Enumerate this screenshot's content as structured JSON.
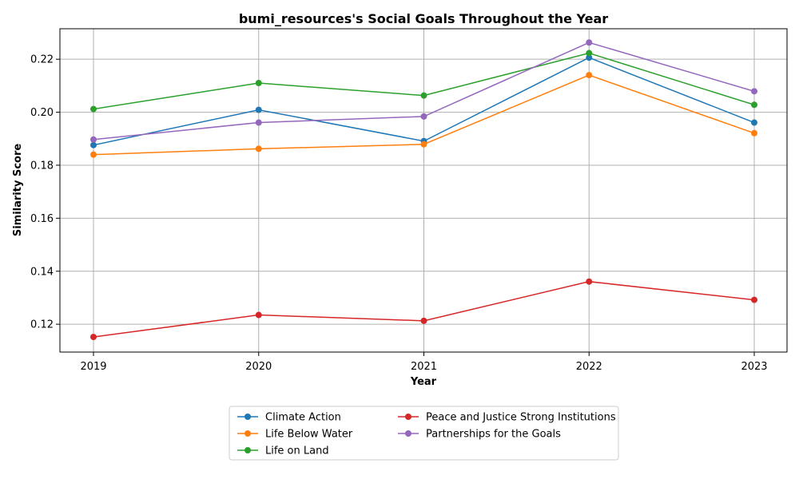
{
  "chart_data": {
    "type": "line",
    "title": "bumi_resources's Social Goals Throughout the Year",
    "xlabel": "Year",
    "ylabel": "Similarity Score",
    "x": [
      "2019",
      "2020",
      "2021",
      "2022",
      "2023"
    ],
    "ylim": [
      0.1095,
      0.2315
    ],
    "yticks": [
      "0.12",
      "0.14",
      "0.16",
      "0.18",
      "0.20",
      "0.22"
    ],
    "grid": true,
    "legend_position": "bottom-center",
    "series": [
      {
        "name": "Climate Action",
        "color": "#1f77b4",
        "values": [
          0.1876,
          0.2009,
          0.1891,
          0.2206,
          0.1961
        ]
      },
      {
        "name": "Life Below Water",
        "color": "#ff7f0e",
        "values": [
          0.184,
          0.1862,
          0.1879,
          0.214,
          0.1921
        ]
      },
      {
        "name": "Life on Land",
        "color": "#2ca02c",
        "values": [
          0.2012,
          0.211,
          0.2063,
          0.2223,
          0.2028
        ]
      },
      {
        "name": "Peace and Justice Strong Institutions",
        "color": "#d62728",
        "values": [
          0.1152,
          0.1235,
          0.1213,
          0.1361,
          0.1292
        ]
      },
      {
        "name": "Partnerships for the Goals",
        "color": "#9467bd",
        "values": [
          0.1897,
          0.1961,
          0.1984,
          0.2263,
          0.2079
        ]
      }
    ]
  }
}
